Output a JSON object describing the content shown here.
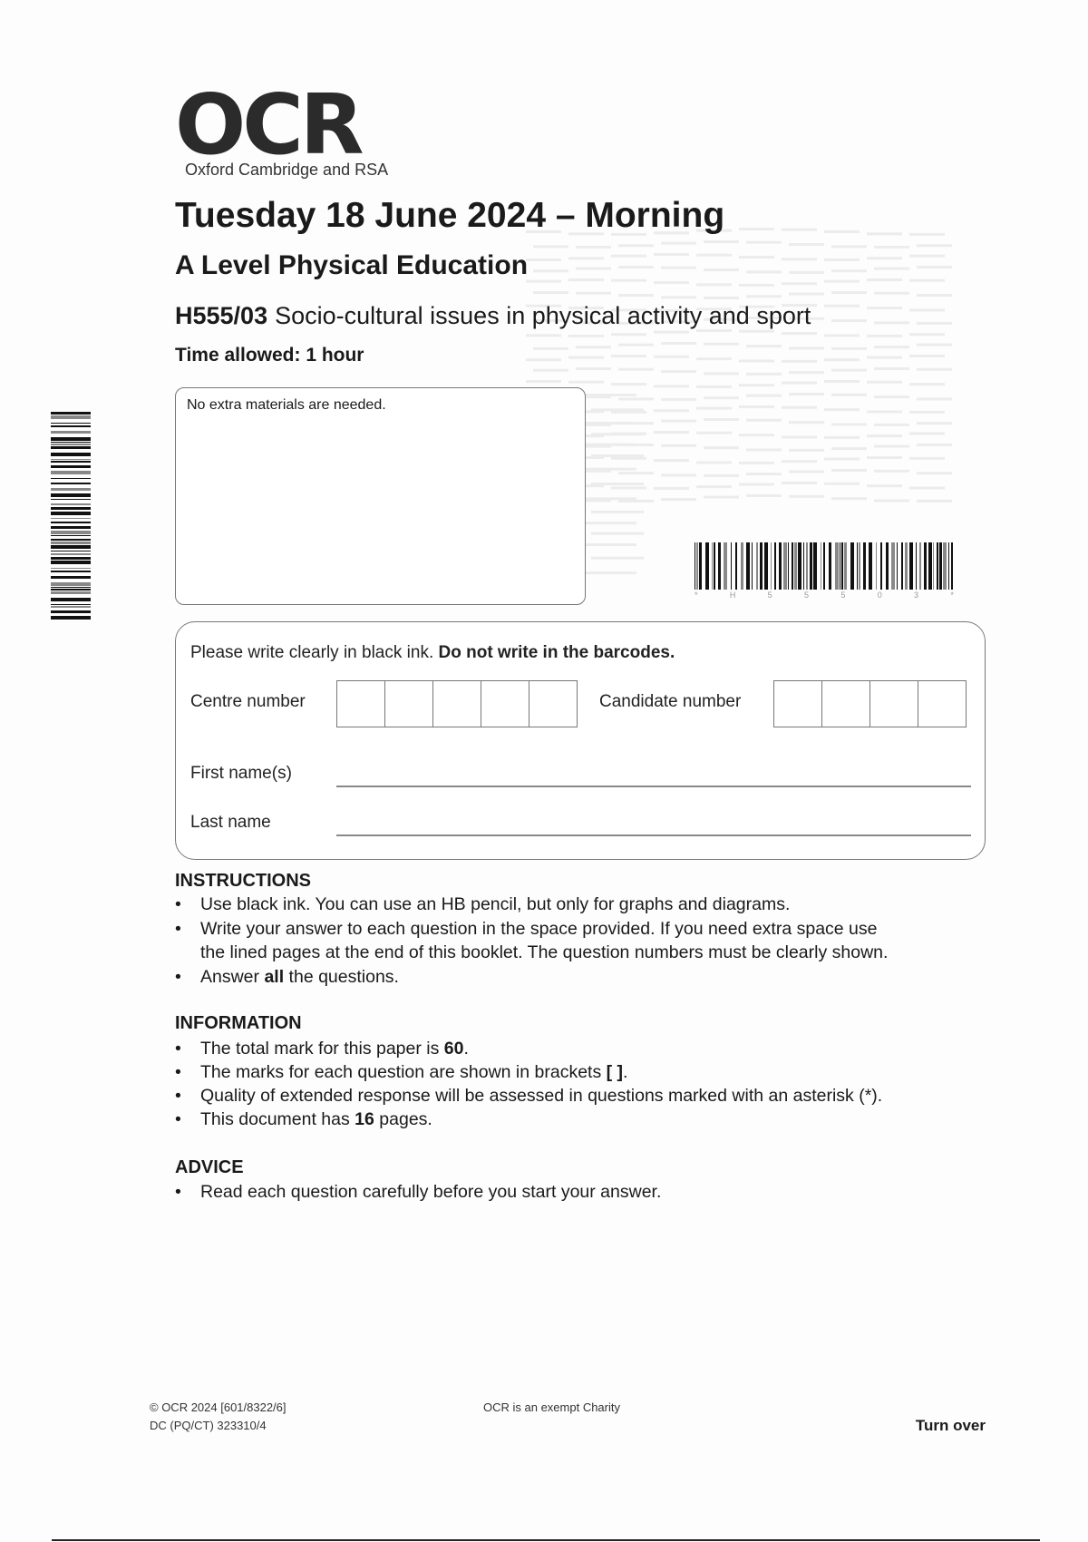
{
  "logo": {
    "text": "OCR",
    "subtitle": "Oxford Cambridge and RSA"
  },
  "header": {
    "title": "Tuesday 18 June 2024 – Morning",
    "subject": "A Level Physical Education",
    "code": "H555/03",
    "paper": "Socio-cultural issues in physical activity and sport",
    "time": "Time allowed: 1 hour"
  },
  "materials": "No extra materials are needed.",
  "watermark_text": "323310",
  "barcode": {
    "digits": [
      "*",
      "H",
      "5",
      "5",
      "5",
      "0",
      "3",
      "*"
    ]
  },
  "side_barcode": {
    "digits": [
      "*",
      "6",
      "6",
      "0",
      "6",
      "4",
      "7",
      "4",
      "5",
      "8",
      "6",
      "*"
    ]
  },
  "candidate": {
    "instruction_plain": "Please write clearly in black ink. ",
    "instruction_bold": "Do not write in the barcodes.",
    "centre_label": "Centre number",
    "candidate_label": "Candidate number",
    "first_name_label": "First name(s)",
    "last_name_label": "Last name"
  },
  "instructions": {
    "heading": "INSTRUCTIONS",
    "items": [
      "Use black ink. You can use an HB pencil, but only for graphs and diagrams.",
      "Write your answer to each question in the space provided. If you need extra space use",
      "the lined pages at the end of this booklet. The question numbers must be clearly shown.",
      "Answer ",
      "all",
      " the questions."
    ]
  },
  "information": {
    "heading": "INFORMATION",
    "i1a": "The total mark for this paper is ",
    "i1b": "60",
    "i1c": ".",
    "i2a": "The marks for each question are shown in brackets ",
    "i2b": "[ ]",
    "i2c": ".",
    "i3": "Quality of extended response will be assessed in questions marked with an asterisk (*).",
    "i4a": "This document has ",
    "i4b": "16",
    "i4c": " pages."
  },
  "advice": {
    "heading": "ADVICE",
    "item": "Read each question carefully before you start your answer."
  },
  "footer": {
    "copyright": "© OCR 2024  [601/8322/6]",
    "ref": "DC (PQ/CT) 323310/4",
    "charity": "OCR is an exempt Charity",
    "turn_over": "Turn over"
  }
}
